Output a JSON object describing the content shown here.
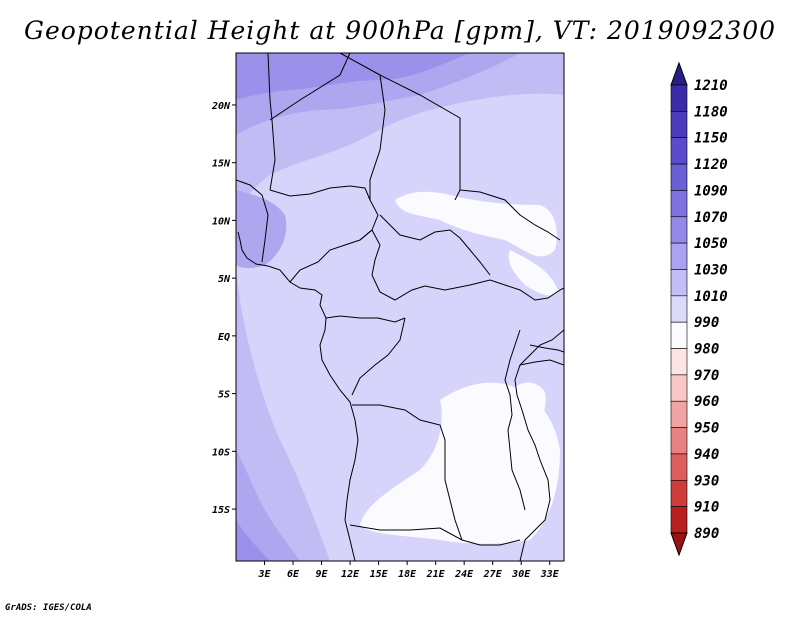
{
  "title": "Geopotential Height at 900hPa [gpm], VT: 2019092300",
  "credit": "GrADS: IGES/COLA",
  "map": {
    "lon_range": [
      0,
      34.5
    ],
    "lat_range": [
      -19.5,
      24.5
    ],
    "x_ticks": [
      "3E",
      "6E",
      "9E",
      "12E",
      "15E",
      "18E",
      "21E",
      "24E",
      "27E",
      "30E",
      "33E"
    ],
    "x_tick_values": [
      3,
      6,
      9,
      12,
      15,
      18,
      21,
      24,
      27,
      30,
      33
    ],
    "y_ticks": [
      "20N",
      "15N",
      "10N",
      "5N",
      "EQ",
      "5S",
      "10S",
      "15S"
    ],
    "y_tick_values": [
      20,
      15,
      10,
      5,
      0,
      -5,
      -10,
      -15
    ]
  },
  "colorbar": {
    "labels": [
      "1210",
      "1180",
      "1150",
      "1120",
      "1090",
      "1070",
      "1050",
      "1030",
      "1010",
      "990",
      "980",
      "970",
      "960",
      "950",
      "940",
      "930",
      "910",
      "890"
    ],
    "colors": [
      "#281e8c",
      "#3a2ca8",
      "#4a3cbc",
      "#5a4ccc",
      "#6b5fd6",
      "#7e72e0",
      "#9488ea",
      "#aba2f0",
      "#c4beF6",
      "#dcdaf9",
      "#fbfbff",
      "#fde4e4",
      "#f9c7c7",
      "#f2a3a3",
      "#e88181",
      "#dc5e5e",
      "#ce3b3b",
      "#b82020",
      "#9a1212"
    ]
  },
  "chart_data": {
    "type": "heatmap",
    "title": "Geopotential Height at 900hPa [gpm], VT: 2019092300",
    "units": "gpm",
    "levels": [
      890,
      910,
      930,
      940,
      950,
      960,
      970,
      980,
      990,
      1010,
      1030,
      1050,
      1070,
      1090,
      1120,
      1150,
      1180,
      1210
    ],
    "xlabel": "",
    "ylabel": "",
    "xlim": [
      0,
      34.5
    ],
    "ylim": [
      -19.5,
      24.5
    ]
  }
}
